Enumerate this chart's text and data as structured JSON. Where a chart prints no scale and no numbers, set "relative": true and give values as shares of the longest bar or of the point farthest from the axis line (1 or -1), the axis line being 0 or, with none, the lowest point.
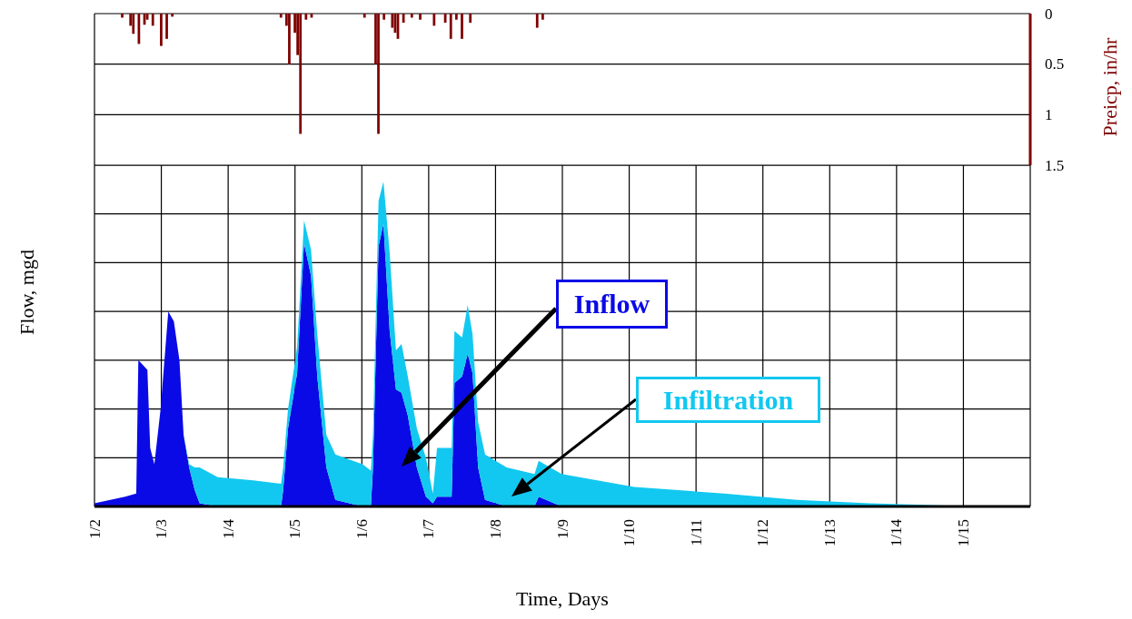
{
  "chart_data": [
    {
      "type": "bar",
      "x": [
        "--01-02T10:00",
        "--01-02T13:00",
        "--01-02T14:00",
        "--01-02T16:00",
        "--01-02T18:00",
        "--01-02T19:00",
        "--01-02T21:00",
        "--01-03T00:00",
        "--01-03T02:00",
        "--01-03T04:00",
        "--01-04T19:00",
        "--01-04T21:00",
        "--01-04T22:00",
        "--01-05T00:00",
        "--01-05T01:00",
        "--01-05T02:00",
        "--01-05T04:00",
        "--01-05T06:00",
        "--01-06T01:00",
        "--01-06T05:00",
        "--01-06T06:00",
        "--01-06T08:00",
        "--01-06T11:00",
        "--01-06T12:00",
        "--01-06T13:00",
        "--01-06T15:00",
        "--01-06T18:00",
        "--01-06T21:00",
        "--01-07T02:00",
        "--01-07T06:00",
        "--01-07T08:00",
        "--01-07T10:00",
        "--01-07T12:00",
        "--01-07T15:00",
        "--01-08T15:00",
        "--01-08T17:00"
      ],
      "values": [
        0.04,
        0.12,
        0.2,
        0.3,
        0.11,
        0.06,
        0.12,
        0.32,
        0.25,
        0.03,
        0.04,
        0.12,
        0.5,
        0.19,
        0.41,
        1.19,
        0.06,
        0.04,
        0.04,
        0.5,
        1.19,
        0.06,
        0.14,
        0.19,
        0.25,
        0.09,
        0.04,
        0.06,
        0.12,
        0.09,
        0.25,
        0.06,
        0.25,
        0.09,
        0.14,
        0.06
      ],
      "color": "#7f0000",
      "ylim": [
        1.5,
        0
      ],
      "yticks": [
        0,
        0.5,
        1,
        1.5
      ],
      "ylabel": "Preicp, in/hr",
      "xlim": [
        "--01-02",
        "--01-16"
      ],
      "xticks": [
        {
          "value": "--01-02",
          "label": null
        },
        {
          "value": "--01-03",
          "label": null
        },
        {
          "value": "--01-04",
          "label": null
        },
        {
          "value": "--01-05",
          "label": null
        },
        {
          "value": "--01-06",
          "label": null
        },
        {
          "value": "--01-07",
          "label": null
        },
        {
          "value": "--01-08",
          "label": null
        },
        {
          "value": "--01-09",
          "label": null
        },
        {
          "value": "--01-10",
          "label": null
        },
        {
          "value": "--01-11",
          "label": null
        },
        {
          "value": "--01-12",
          "label": null
        },
        {
          "value": "--01-13",
          "label": null
        },
        {
          "value": "--01-14",
          "label": null
        },
        {
          "value": "--01-15",
          "label": null
        }
      ],
      "grid": true,
      "tick_labels": "y"
    },
    {
      "type": "area",
      "stacked": true,
      "relative": true,
      "x": [
        "--01-02T00:00",
        "--01-02T11:00",
        "--01-02T15:00",
        "--01-02T15:45",
        "--01-02T19:00",
        "--01-02T20:00",
        "--01-02T21:30",
        "--01-02T23:45",
        "--01-03T02:30",
        "--01-03T04:30",
        "--01-03T06:30",
        "--01-03T08:00",
        "--01-03T10:00",
        "--01-03T12:00",
        "--01-03T13:45",
        "--01-03T20:15",
        "--01-04T09:00",
        "--01-04T19:00",
        "--01-04T19:45",
        "--01-04T21:30",
        "--01-05T00:45",
        "--01-05T03:15",
        "--01-05T05:45",
        "--01-05T08:00",
        "--01-05T11:15",
        "--01-05T14:30",
        "--01-06T00:15",
        "--01-06T03:15",
        "--01-06T04:00",
        "--01-06T06:00",
        "--01-06T07:45",
        "--01-06T10:00",
        "--01-06T12:15",
        "--01-06T14:15",
        "--01-06T16:30",
        "--01-06T19:45",
        "--01-06T23:00",
        "--01-07T01:30",
        "--01-07T03:00",
        "--01-07T08:15",
        "--01-07T09:15",
        "--01-07T12:00",
        "--01-07T14:00",
        "--01-07T15:45",
        "--01-07T17:45",
        "--01-07T20:15",
        "--01-08T04:00",
        "--01-08T14:00",
        "--01-08T15:30",
        "--01-08T23:45",
        "--01-10T01:45",
        "--01-11T10:00",
        "--01-12T12:15",
        "--01-13T14:15",
        "--01-15T05:15",
        "--01-15T22:45"
      ],
      "series": [
        {
          "name": "Inflow",
          "color": "#0a0ae6",
          "values": [
            0.01,
            0.03,
            0.04,
            0.45,
            0.42,
            0.18,
            0.13,
            0.3,
            0.6,
            0.57,
            0.45,
            0.22,
            0.12,
            0.05,
            0.01,
            0,
            0,
            0,
            0.05,
            0.24,
            0.41,
            0.81,
            0.71,
            0.4,
            0.12,
            0.02,
            0,
            0,
            0.12,
            0.8,
            0.87,
            0.54,
            0.36,
            0.35,
            0.28,
            0.12,
            0.03,
            0.01,
            0.03,
            0.03,
            0.38,
            0.4,
            0.47,
            0.41,
            0.12,
            0.02,
            0,
            0,
            0.03,
            0,
            0,
            0,
            0,
            0,
            0,
            0
          ]
        },
        {
          "name": "Infiltration",
          "color": "#12c8f0",
          "values": [
            0,
            0,
            0,
            0,
            0,
            0,
            0,
            0,
            0,
            0,
            0,
            0,
            0.01,
            0.07,
            0.11,
            0.09,
            0.08,
            0.07,
            0.07,
            0.06,
            0.08,
            0.07,
            0.08,
            0.13,
            0.1,
            0.14,
            0.13,
            0.11,
            0.1,
            0.14,
            0.13,
            0.24,
            0.12,
            0.15,
            0.12,
            0.12,
            0.12,
            0.03,
            0.15,
            0.15,
            0.16,
            0.12,
            0.15,
            0.12,
            0.14,
            0.14,
            0.12,
            0.1,
            0.11,
            0.1,
            0.06,
            0.04,
            0.02,
            0.01,
            0,
            0
          ]
        }
      ],
      "xlim": [
        "--01-02",
        "--01-16"
      ],
      "xticks": [
        {
          "value": "--01-02",
          "label": "1/2"
        },
        {
          "value": "--01-03",
          "label": "1/3"
        },
        {
          "value": "--01-04",
          "label": "1/4"
        },
        {
          "value": "--01-05",
          "label": "1/5"
        },
        {
          "value": "--01-06",
          "label": "1/6"
        },
        {
          "value": "--01-07",
          "label": "1/7"
        },
        {
          "value": "--01-08",
          "label": "1/8"
        },
        {
          "value": "--01-09",
          "label": "1/9"
        },
        {
          "value": "--01-10",
          "label": "1/10"
        },
        {
          "value": "--01-11",
          "label": "1/11"
        },
        {
          "value": "--01-12",
          "label": "1/12"
        },
        {
          "value": "--01-13",
          "label": "1/13"
        },
        {
          "value": "--01-14",
          "label": "1/14"
        },
        {
          "value": "--01-15",
          "label": "1/15"
        }
      ],
      "xlabel": "Time, Days",
      "ylabel": "Flow, mgd",
      "grid": true,
      "tick_labels": "x"
    }
  ]
}
